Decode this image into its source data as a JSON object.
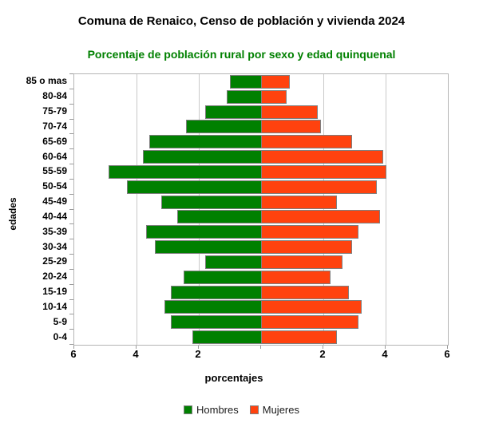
{
  "chart_data": {
    "type": "bar",
    "variant": "population-pyramid",
    "title": "Comuna de Renaico, Censo de población y vivienda 2024",
    "subtitle": "Porcentaje de población rural por sexo y edad quinquenal",
    "title_color": "#000000",
    "subtitle_color": "#008000",
    "xlabel": "porcentajes",
    "ylabel": "edades",
    "categories_order": "top-to-bottom",
    "categories": [
      "85 o mas",
      "80-84",
      "75-79",
      "70-74",
      "65-69",
      "60-64",
      "55-59",
      "50-54",
      "45-49",
      "40-44",
      "35-39",
      "30-34",
      "25-29",
      "20-24",
      "15-19",
      "10-14",
      "5-9",
      "0-4"
    ],
    "series": [
      {
        "name": "Hombres",
        "side": "left",
        "color": "#008000",
        "values": [
          1.0,
          1.1,
          1.8,
          2.4,
          3.6,
          3.8,
          4.9,
          4.3,
          3.2,
          2.7,
          3.7,
          3.4,
          1.8,
          2.5,
          2.9,
          3.1,
          2.9,
          2.2
        ]
      },
      {
        "name": "Mujeres",
        "side": "right",
        "color": "#FF420E",
        "values": [
          0.9,
          0.8,
          1.8,
          1.9,
          2.9,
          3.9,
          4.0,
          3.7,
          2.4,
          3.8,
          3.1,
          2.9,
          2.6,
          2.2,
          2.8,
          3.2,
          3.1,
          2.4
        ]
      }
    ],
    "axis": {
      "max_per_side": 6,
      "tick_values": [
        2,
        4,
        6
      ],
      "grid": true,
      "grid_color": "#c9c9c9",
      "axis_color": "#9a9a9a",
      "bar_border_color": "#7f7f7f"
    },
    "legend": {
      "position": "bottom"
    }
  }
}
